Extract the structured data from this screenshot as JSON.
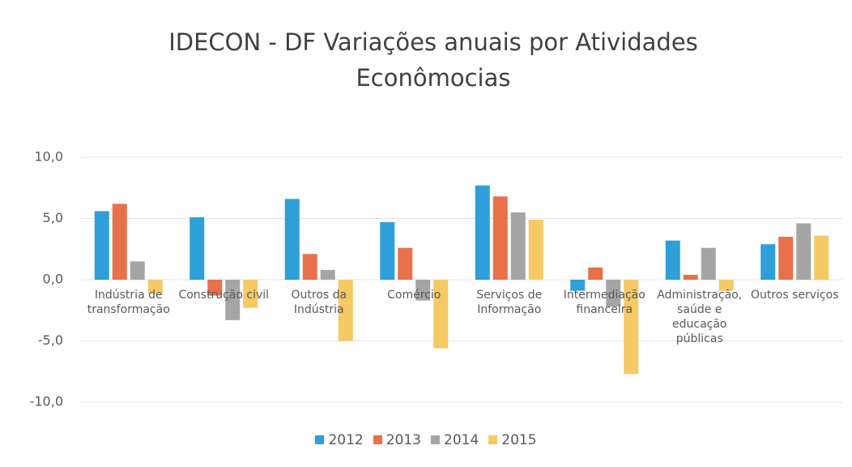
{
  "chart_data": {
    "type": "bar",
    "title": "IDECON - DF Variações anuais por Atividades Econômocias",
    "categories": [
      "Indústria de transformação",
      "Construção civil",
      "Outros da Indústria",
      "Comércio",
      "Serviços de Informação",
      "Intermediação financeira",
      "Administração, saúde e educação públicas",
      "Outros serviços"
    ],
    "series": [
      {
        "name": "2012",
        "color": "#2e9fd8",
        "values": [
          5.6,
          5.1,
          6.6,
          4.7,
          7.7,
          -0.9,
          3.2,
          2.9
        ]
      },
      {
        "name": "2013",
        "color": "#e8704a",
        "values": [
          6.2,
          -1.3,
          2.1,
          2.6,
          6.8,
          1.0,
          0.4,
          3.5
        ]
      },
      {
        "name": "2014",
        "color": "#a5a5a5",
        "values": [
          1.5,
          -3.3,
          0.8,
          -1.7,
          5.5,
          -2.2,
          2.6,
          4.6
        ]
      },
      {
        "name": "2015",
        "color": "#f5c964",
        "values": [
          -1.1,
          -2.3,
          -5.0,
          -5.6,
          4.9,
          -7.7,
          -0.9,
          3.6
        ]
      }
    ],
    "ylim": [
      -10,
      10
    ],
    "yticks": [
      {
        "value": -10,
        "label": "-10,0"
      },
      {
        "value": -5,
        "label": "-5,0"
      },
      {
        "value": 0,
        "label": "0,0"
      },
      {
        "value": 5,
        "label": "5,0"
      },
      {
        "value": 10,
        "label": "10,0"
      }
    ],
    "grid": true,
    "legend": "bottom"
  }
}
